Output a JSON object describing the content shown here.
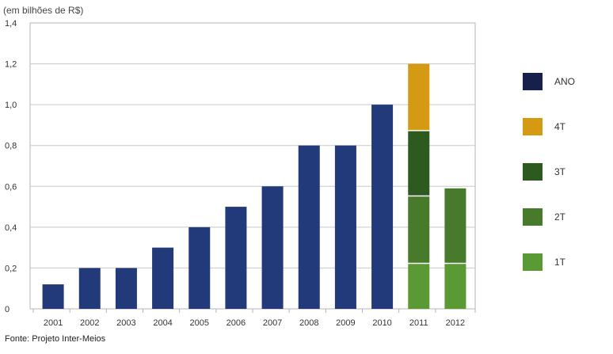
{
  "unit_label": "(em bilhões de R$)",
  "source": "Fonte: Projeto Inter-Meios",
  "chart_data": {
    "type": "bar",
    "stacked": true,
    "title": "",
    "xlabel": "",
    "ylabel": "(em bilhões de R$)",
    "ylim": [
      0,
      1.4
    ],
    "yticks": [
      "0",
      "0,2",
      "0,4",
      "0,6",
      "0,8",
      "1,0",
      "1,2",
      "1,4"
    ],
    "grid": true,
    "legend_position": "right",
    "categories": [
      "2001",
      "2002",
      "2003",
      "2004",
      "2005",
      "2006",
      "2007",
      "2008",
      "2009",
      "2010",
      "2011",
      "2012"
    ],
    "series": [
      {
        "name": "ANO",
        "color": "#233a7a",
        "values": [
          0.12,
          0.2,
          0.2,
          0.3,
          0.4,
          0.5,
          0.6,
          0.8,
          0.8,
          1.0,
          0,
          0
        ]
      },
      {
        "name": "1T",
        "color": "#5a9a35",
        "values": [
          0,
          0,
          0,
          0,
          0,
          0,
          0,
          0,
          0,
          0,
          0.22,
          0.22
        ]
      },
      {
        "name": "2T",
        "color": "#477a2a",
        "values": [
          0,
          0,
          0,
          0,
          0,
          0,
          0,
          0,
          0,
          0,
          0.33,
          0.37
        ]
      },
      {
        "name": "3T",
        "color": "#2d5a1e",
        "values": [
          0,
          0,
          0,
          0,
          0,
          0,
          0,
          0,
          0,
          0,
          0.32,
          0
        ]
      },
      {
        "name": "4T",
        "color": "#d49a14",
        "values": [
          0,
          0,
          0,
          0,
          0,
          0,
          0,
          0,
          0,
          0,
          0.33,
          0
        ]
      }
    ],
    "legend": [
      {
        "name": "ANO",
        "color": "#16204a"
      },
      {
        "name": "4T",
        "color": "#d49a14"
      },
      {
        "name": "3T",
        "color": "#2d5a1e"
      },
      {
        "name": "2T",
        "color": "#477a2a"
      },
      {
        "name": "1T",
        "color": "#5a9a35"
      }
    ]
  }
}
